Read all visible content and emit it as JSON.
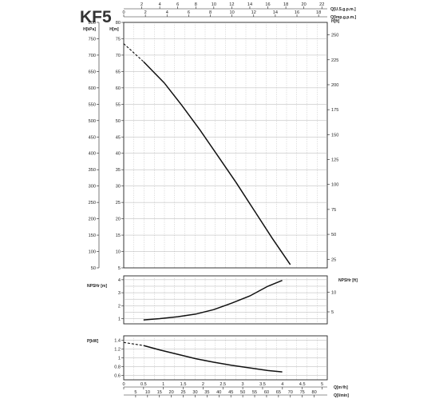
{
  "title": "KF5",
  "chart_data": [
    {
      "name": "head",
      "type": "line",
      "top_axes": [
        {
          "label": "Q[U.S.g.p.m.]",
          "ticks": [
            2,
            4,
            6,
            8,
            10,
            12,
            14,
            16,
            18,
            20,
            22
          ],
          "range": [
            0,
            22.6
          ]
        },
        {
          "label": "Q[Imp.g.p.m.]",
          "ticks": [
            0,
            2,
            4,
            6,
            8,
            10,
            12,
            14,
            16,
            18
          ],
          "range": [
            0,
            18.8
          ]
        }
      ],
      "left_axes": [
        {
          "label": "H[kPa]",
          "ticks": [
            50,
            100,
            150,
            200,
            250,
            300,
            350,
            400,
            450,
            500,
            550,
            600,
            650,
            700,
            750,
            800
          ],
          "range": [
            50,
            800
          ]
        },
        {
          "label": "H[m]",
          "ticks": [
            5,
            10,
            15,
            20,
            25,
            30,
            35,
            40,
            45,
            50,
            55,
            60,
            65,
            70,
            75,
            80
          ],
          "range": [
            5,
            80
          ]
        }
      ],
      "right_axis": {
        "label": "H[ft]",
        "ticks": [
          25,
          50,
          75,
          100,
          125,
          150,
          175,
          200,
          225,
          250
        ],
        "range": [
          16.4,
          262.5
        ]
      },
      "grid": true,
      "curve": {
        "x": [
          0,
          2.2,
          4.5,
          6.5,
          8.5,
          10.5,
          12.5,
          14.5,
          16.5,
          18.5
        ],
        "y": [
          73.5,
          68,
          61.5,
          54.5,
          47,
          39,
          31,
          22.5,
          14,
          6
        ]
      },
      "dashed_x_max": 2.2
    },
    {
      "name": "npsh",
      "type": "line",
      "left_axis": {
        "label": "NPSHr [m]",
        "ticks": [
          1,
          2,
          3,
          4
        ],
        "range": [
          0.6,
          4.3
        ]
      },
      "right_axis": {
        "label": "NPSHr [ft]",
        "ticks": [
          5,
          10
        ],
        "range": [
          1.97,
          14.1
        ]
      },
      "grid": true,
      "curve": {
        "x": [
          2.2,
          4,
          6,
          8,
          10,
          12,
          14,
          16,
          17.6
        ],
        "y": [
          0.9,
          1.0,
          1.15,
          1.35,
          1.7,
          2.2,
          2.75,
          3.5,
          3.95
        ]
      }
    },
    {
      "name": "power",
      "type": "line",
      "left_axis": {
        "label": "P[kW]",
        "ticks": [
          0.6,
          0.8,
          1,
          1.2,
          1.4
        ],
        "range": [
          0.5,
          1.5
        ]
      },
      "grid": true,
      "curve": {
        "x": [
          0,
          2.2,
          4,
          6,
          8,
          10,
          12,
          14,
          16,
          17.6
        ],
        "y": [
          1.35,
          1.28,
          1.18,
          1.08,
          0.98,
          0.9,
          0.83,
          0.77,
          0.71,
          0.68
        ]
      },
      "dashed_x_max": 2.2,
      "bottom_axes": [
        {
          "label": "Q[m³/h]",
          "ticks": [
            0,
            0.5,
            1,
            1.5,
            2,
            2.5,
            3,
            3.5,
            4,
            4.5,
            5
          ],
          "range": [
            0,
            5.13
          ]
        },
        {
          "label": "Q[l/min]",
          "ticks": [
            5,
            10,
            15,
            20,
            25,
            30,
            35,
            40,
            45,
            50,
            55,
            60,
            65,
            70,
            75,
            80
          ],
          "range": [
            0,
            85.5
          ]
        }
      ]
    }
  ]
}
